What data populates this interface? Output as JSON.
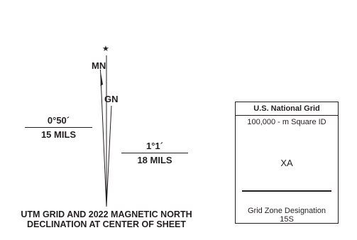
{
  "diagram": {
    "star_label": "★",
    "mn_label": "MN",
    "gn_label": "GN",
    "left_decl": {
      "degrees": "0°50´",
      "mils": "15 MILS"
    },
    "right_decl": {
      "degrees": "1°1´",
      "mils": "18 MILS"
    },
    "caption_line1": "UTM GRID AND 2022 MAGNETIC NORTH",
    "caption_line2": "DECLINATION AT CENTER OF SHEET"
  },
  "usng": {
    "title": "U.S. National Grid",
    "square_id_label": "100,000 - m Square ID",
    "square_id": "XA",
    "gzd_label": "Grid Zone Designation",
    "gzd": "15S"
  },
  "colors": {
    "ink": "#231f20",
    "background": "#ffffff"
  }
}
